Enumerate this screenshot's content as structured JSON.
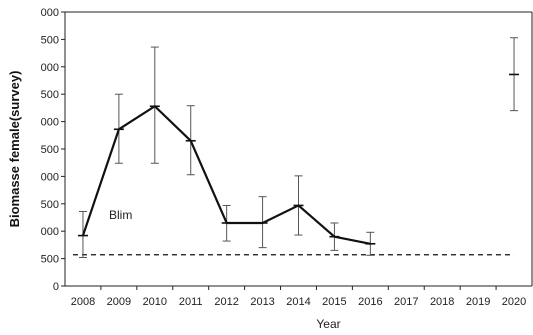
{
  "chart_data": {
    "type": "line",
    "xlabel": "Year",
    "ylabel": "Biomasse female(survey)",
    "x_ticks": [
      "2008",
      "2009",
      "2010",
      "2011",
      "2012",
      "2013",
      "2014",
      "2015",
      "2016",
      "2017",
      "2018",
      "2019",
      "2020"
    ],
    "y_ticks": [
      "0",
      "500",
      "000",
      "500",
      "000",
      "500",
      "000",
      "500",
      "000",
      "500",
      "000"
    ],
    "ylim": [
      0,
      5000
    ],
    "grid": false,
    "series": [
      {
        "x": [
          "2008",
          "2009",
          "2010",
          "2011",
          "2012",
          "2013",
          "2014",
          "2015",
          "2016"
        ],
        "values": [
          920,
          2860,
          3280,
          2650,
          1150,
          1150,
          1470,
          900,
          770
        ],
        "error_low": [
          520,
          2240,
          2240,
          2030,
          820,
          700,
          930,
          650,
          560
        ],
        "error_high": [
          1360,
          3500,
          4360,
          3290,
          1470,
          1630,
          2010,
          1150,
          980
        ]
      },
      {
        "x": [
          "2020"
        ],
        "values": [
          3860
        ],
        "error_low": [
          3200
        ],
        "error_high": [
          4530
        ]
      }
    ],
    "reference_line": {
      "label": "Blim",
      "value": 570,
      "style": "dashed"
    },
    "colors": {
      "line": "#111111",
      "axis": "#222222"
    }
  }
}
